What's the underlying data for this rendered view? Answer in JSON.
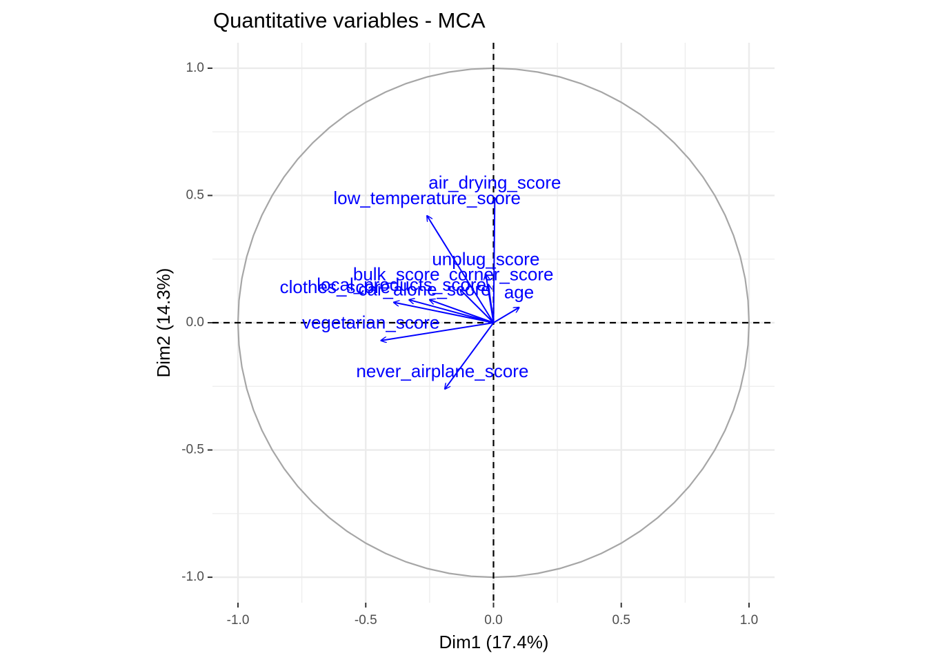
{
  "chart_data": {
    "type": "scatter",
    "title": "Quantitative variables - MCA",
    "xlabel": "Dim1 (17.4%)",
    "ylabel": "Dim2 (14.3%)",
    "xlim": [
      -1.1,
      1.1
    ],
    "ylim": [
      -1.1,
      1.1
    ],
    "x_ticks": [
      -1.0,
      -0.5,
      0.0,
      0.5,
      1.0
    ],
    "x_tick_labels": [
      "-1.0",
      "-0.5",
      "0.0",
      "0.5",
      "1.0"
    ],
    "y_ticks": [
      -1.0,
      -0.5,
      0.0,
      0.5,
      1.0
    ],
    "y_tick_labels": [
      "-1.0",
      "-0.5",
      "0.0",
      "0.5",
      "1.0"
    ],
    "grid": true,
    "colors": {
      "arrows": "#0000ff",
      "circle": "#a6a6a6",
      "grid": "#ebebeb",
      "reference_lines": "#000000"
    },
    "variables": [
      {
        "name": "air_drying_score",
        "x": 0.005,
        "y": 0.49
      },
      {
        "name": "low_temperature_score",
        "x": -0.26,
        "y": 0.42
      },
      {
        "name": "unplug_score",
        "x": -0.03,
        "y": 0.19
      },
      {
        "name": "bulk_score",
        "x": -0.13,
        "y": 0.13
      },
      {
        "name": "corner_score",
        "x": -0.02,
        "y": 0.15
      },
      {
        "name": "local_products_score",
        "x": -0.25,
        "y": 0.09
      },
      {
        "name": "age",
        "x": 0.1,
        "y": 0.06
      },
      {
        "name": "car_alone_score",
        "x": -0.33,
        "y": 0.09
      },
      {
        "name": "clothes_score",
        "x": -0.39,
        "y": 0.08
      },
      {
        "name": "vegetarian_score",
        "x": -0.44,
        "y": -0.07
      },
      {
        "name": "never_airplane_score",
        "x": -0.19,
        "y": -0.26
      }
    ],
    "labels": [
      {
        "name": "air_drying_score",
        "x": 0.005,
        "y": 0.545
      },
      {
        "name": "low_temperature_score",
        "x": -0.26,
        "y": 0.485
      },
      {
        "name": "unplug_score",
        "x": -0.03,
        "y": 0.245
      },
      {
        "name": "bulk_score",
        "x": -0.38,
        "y": 0.185
      },
      {
        "name": "corner_score",
        "x": 0.03,
        "y": 0.185
      },
      {
        "name": "local_products_score",
        "x": -0.36,
        "y": 0.145
      },
      {
        "name": "age",
        "x": 0.1,
        "y": 0.115
      },
      {
        "name": "car_alone_score",
        "x": -0.27,
        "y": 0.125
      },
      {
        "name": "clothes_score",
        "x": -0.62,
        "y": 0.135
      },
      {
        "name": "vegetarian_score",
        "x": -0.48,
        "y": -0.005
      },
      {
        "name": "never_airplane_score",
        "x": -0.2,
        "y": -0.195
      }
    ]
  }
}
